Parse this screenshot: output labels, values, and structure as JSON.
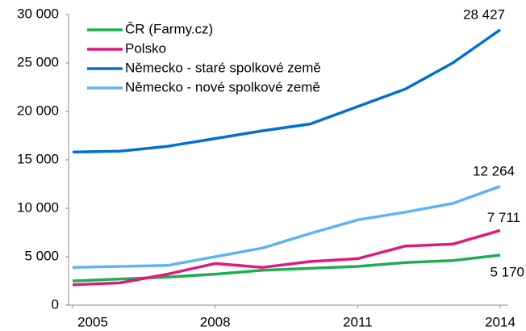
{
  "chart_data": {
    "type": "line",
    "x": [
      2005,
      2006,
      2007,
      2008,
      2009,
      2010,
      2011,
      2012,
      2013,
      2014
    ],
    "xlim": [
      2005,
      2014
    ],
    "xticks": [
      2005,
      2008,
      2011,
      2014
    ],
    "ylim": [
      0,
      30000
    ],
    "yticks": [
      0,
      {
        "value": 5000,
        "label": "5 000"
      },
      {
        "value": 10000,
        "label": "10 000"
      },
      {
        "value": 15000,
        "label": "15 000"
      },
      {
        "value": 20000,
        "label": "20 000"
      },
      {
        "value": 25000,
        "label": "25 000"
      },
      {
        "value": 30000,
        "label": "30 000"
      }
    ],
    "grid": false,
    "legend": "upper left",
    "series": [
      {
        "name": "ČR (Farmy.cz)",
        "color": "#1fae4f",
        "values": [
          2500,
          2700,
          2900,
          3200,
          3600,
          3800,
          4000,
          4400,
          4600,
          5170
        ],
        "value_labels": [
          null,
          null,
          null,
          null,
          null,
          null,
          null,
          null,
          null,
          "5 170"
        ]
      },
      {
        "name": "Polsko",
        "color": "#e0197d",
        "values": [
          2100,
          2300,
          3200,
          4300,
          3900,
          4500,
          4800,
          6100,
          6300,
          7711
        ],
        "value_labels": [
          null,
          null,
          null,
          null,
          null,
          null,
          null,
          null,
          null,
          "7 711"
        ]
      },
      {
        "name": "Německo - staré spolkové země",
        "color": "#0070d0",
        "values": [
          15800,
          15900,
          16400,
          17200,
          18000,
          18700,
          20500,
          22300,
          25000,
          28427
        ],
        "value_labels": [
          null,
          null,
          null,
          null,
          null,
          null,
          null,
          null,
          null,
          "28 427"
        ]
      },
      {
        "name": "Německo - nové spolkové země",
        "color": "#5eb4f2",
        "values": [
          3900,
          4000,
          4100,
          5000,
          5900,
          7400,
          8800,
          9600,
          10500,
          12264
        ],
        "value_labels": [
          null,
          null,
          null,
          null,
          null,
          null,
          null,
          null,
          null,
          "12 264"
        ]
      }
    ]
  }
}
